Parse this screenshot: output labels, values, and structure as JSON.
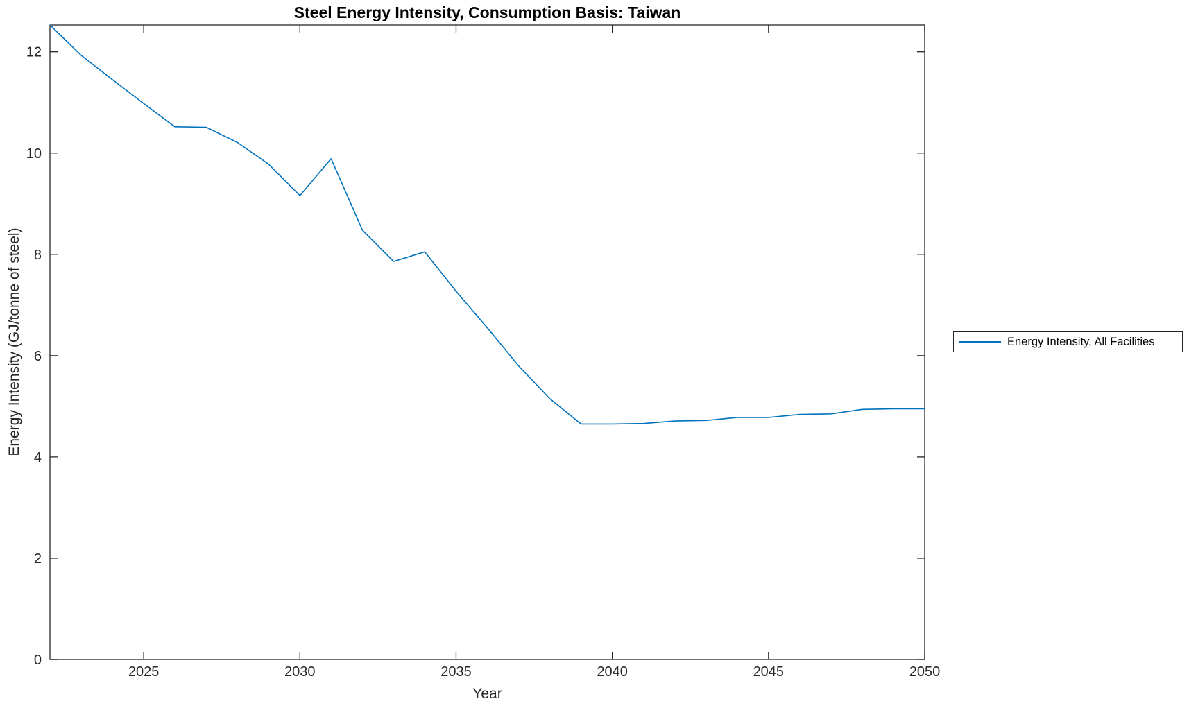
{
  "title": "Steel Energy Intensity, Consumption Basis: Taiwan",
  "axes": {
    "xlabel": "Year",
    "ylabel": "Energy Intensity (GJ/tonne of steel)"
  },
  "legend": {
    "items": [
      {
        "label": "Energy Intensity, All Facilities",
        "color": "#0072BD"
      }
    ],
    "position": "outside-right"
  },
  "colors": {
    "line": "#0072BD",
    "axis": "#262626",
    "title": "#000000",
    "background": "#ffffff"
  },
  "chart_data": {
    "type": "line",
    "title": "Steel Energy Intensity, Consumption Basis: Taiwan",
    "xlabel": "Year",
    "ylabel": "Energy Intensity (GJ/tonne of steel)",
    "x": [
      2022,
      2023,
      2024,
      2025,
      2026,
      2027,
      2028,
      2029,
      2030,
      2031,
      2032,
      2033,
      2034,
      2035,
      2036,
      2037,
      2038,
      2039,
      2040,
      2041,
      2042,
      2043,
      2044,
      2045,
      2046,
      2047,
      2048,
      2049,
      2050
    ],
    "series": [
      {
        "name": "Energy Intensity, All Facilities",
        "color": "#0072BD",
        "values": [
          12.53,
          11.93,
          11.45,
          10.98,
          10.52,
          10.51,
          10.21,
          9.78,
          9.16,
          9.89,
          8.48,
          7.86,
          8.05,
          7.27,
          6.55,
          5.8,
          5.15,
          4.65,
          4.65,
          4.66,
          4.71,
          4.72,
          4.78,
          4.78,
          4.84,
          4.85,
          4.94,
          4.95,
          4.95
        ]
      }
    ],
    "xlim": [
      2022,
      2050
    ],
    "ylim": [
      0,
      12.53
    ],
    "xticks": [
      2025,
      2030,
      2035,
      2040,
      2045,
      2050
    ],
    "yticks": [
      0,
      2,
      4,
      6,
      8,
      10,
      12
    ],
    "grid": false,
    "box": true,
    "tick_direction": "in",
    "legend_position": "outside-right"
  }
}
